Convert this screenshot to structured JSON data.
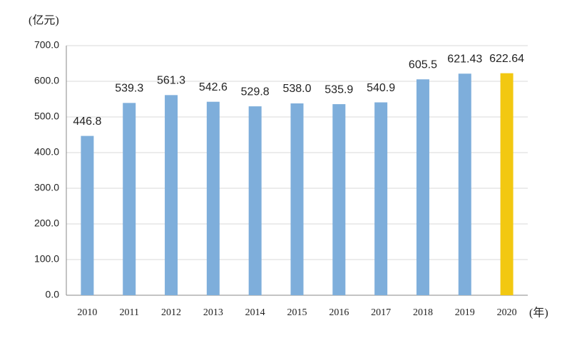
{
  "chart_data": {
    "type": "bar",
    "y_label": "(亿元)",
    "x_label": "(年)",
    "categories": [
      "2010",
      "2011",
      "2012",
      "2013",
      "2014",
      "2015",
      "2016",
      "2017",
      "2018",
      "2019",
      "2020"
    ],
    "values": [
      446.8,
      539.3,
      561.3,
      542.6,
      529.8,
      538.0,
      535.9,
      540.9,
      605.5,
      621.43,
      622.64
    ],
    "value_labels": [
      "446.8",
      "539.3",
      "561.3",
      "542.6",
      "529.8",
      "538.0",
      "535.9",
      "540.9",
      "605.5",
      "621.43",
      "622.64"
    ],
    "colors": [
      "#7eaedb",
      "#7eaedb",
      "#7eaedb",
      "#7eaedb",
      "#7eaedb",
      "#7eaedb",
      "#7eaedb",
      "#7eaedb",
      "#7eaedb",
      "#7eaedb",
      "#f2c811"
    ],
    "ylim": [
      0,
      700
    ],
    "yticks": [
      {
        "value": 0,
        "label": "0.0"
      },
      {
        "value": 100,
        "label": "100.0"
      },
      {
        "value": 200,
        "label": "200.0"
      },
      {
        "value": 300,
        "label": "300.0"
      },
      {
        "value": 400,
        "label": "400.0"
      },
      {
        "value": 500,
        "label": "500.0"
      },
      {
        "value": 600,
        "label": "600.0"
      },
      {
        "value": 700,
        "label": "700.0"
      }
    ],
    "grid": true
  }
}
